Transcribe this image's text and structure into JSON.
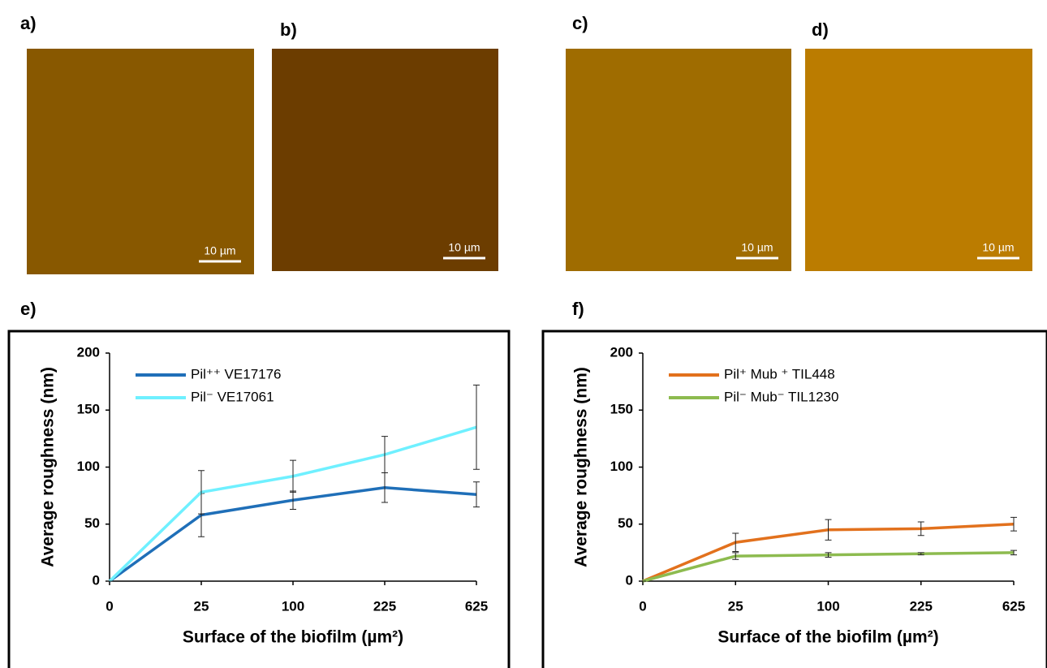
{
  "image_panels": [
    {
      "label": "a)",
      "scale_bar": "10 µm"
    },
    {
      "label": "b)",
      "scale_bar": "10 µm"
    },
    {
      "label": "c)",
      "scale_bar": "10 µm"
    },
    {
      "label": "d)",
      "scale_bar": "10 µm"
    }
  ],
  "chart_data": [
    {
      "type": "line",
      "panel_label": "e)",
      "x_label": "Surface of the biofilm (µm²)",
      "y_label": "Average roughness (nm)",
      "categories": [
        "0",
        "25",
        "100",
        "225",
        "625"
      ],
      "ylim": [
        0,
        200
      ],
      "yticks": [
        0,
        50,
        100,
        150,
        200
      ],
      "grid": false,
      "legend": "upper-left",
      "series": [
        {
          "name": "Pil⁺⁺ VE17176",
          "color": "#1f6fb8",
          "values": [
            0,
            58,
            71,
            82,
            76
          ],
          "errors": [
            0,
            19,
            8,
            13,
            11
          ]
        },
        {
          "name": "Pil⁻   VE17061",
          "color": "#6ff0ff",
          "values": [
            0,
            78,
            92,
            111,
            135
          ],
          "errors": [
            0,
            19,
            14,
            16,
            37
          ]
        }
      ]
    },
    {
      "type": "line",
      "panel_label": "f)",
      "x_label": "Surface of the biofilm (µm²)",
      "y_label": "Average roughness (nm)",
      "categories": [
        "0",
        "25",
        "100",
        "225",
        "625"
      ],
      "ylim": [
        0,
        200
      ],
      "yticks": [
        0,
        50,
        100,
        150,
        200
      ],
      "grid": false,
      "legend": "upper-left",
      "series": [
        {
          "name": "Pil⁺ Mub ⁺ TIL448",
          "color": "#e2711d",
          "values": [
            0,
            34,
            45,
            46,
            50
          ],
          "errors": [
            0,
            8,
            9,
            6,
            6
          ]
        },
        {
          "name": "Pil⁻   Mub⁻ TIL1230",
          "color": "#8dbb4f",
          "values": [
            0,
            22,
            23,
            24,
            25
          ],
          "errors": [
            0,
            3,
            2,
            1,
            2
          ]
        }
      ]
    }
  ]
}
